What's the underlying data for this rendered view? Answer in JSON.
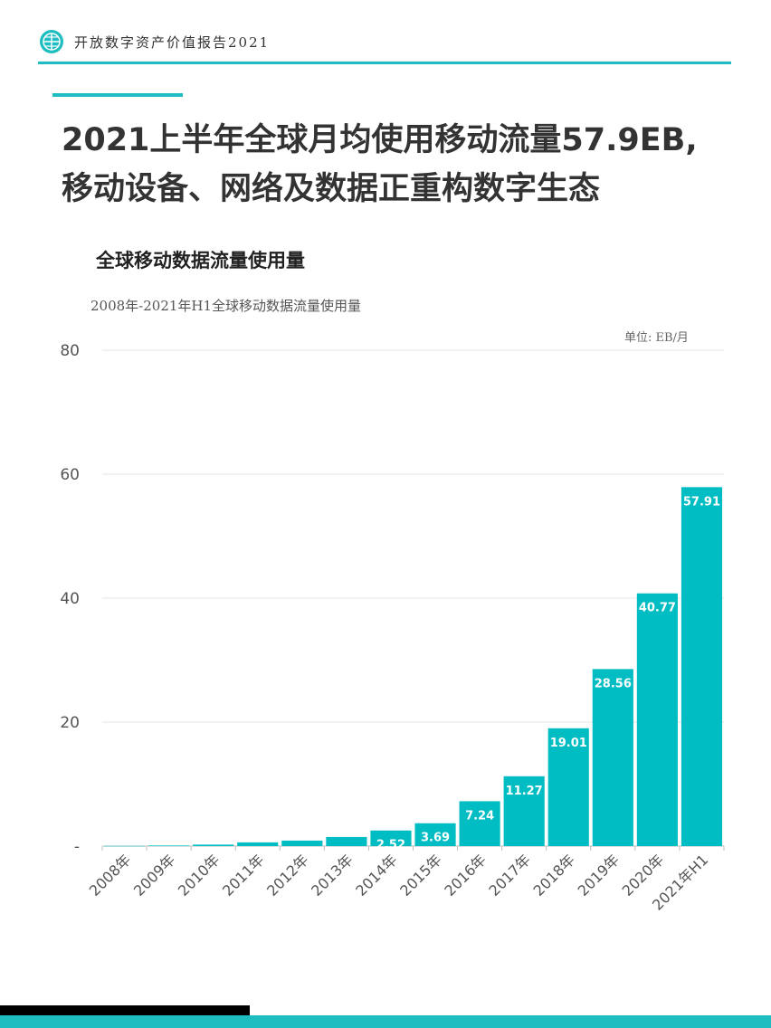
{
  "header": {
    "title": "开放数字资产价值报告2021",
    "logo_icon": "globe-icon",
    "accent_color": "#1ebdc1"
  },
  "main_title": {
    "line1": "2021上半年全球月均使用移动流量57.9EB,",
    "line2": "移动设备、网络及数据正重构数字生态"
  },
  "section_heading": "全球移动数据流量使用量",
  "chart_data": {
    "type": "bar",
    "title": "2008年-2021年H1全球移动数据流量使用量",
    "unit": "单位: EB/月",
    "xlabel": "",
    "ylabel": "",
    "ylim": [
      0,
      80
    ],
    "yticks": [
      "-",
      "20",
      "40",
      "60",
      "80"
    ],
    "grid": true,
    "bar_color": "#00bdc4",
    "categories": [
      "2008年",
      "2009年",
      "2010年",
      "2011年",
      "2012年",
      "2013年",
      "2014年",
      "2015年",
      "2016年",
      "2017年",
      "2018年",
      "2019年",
      "2020年",
      "2021年H1"
    ],
    "values": [
      0.03,
      0.1,
      0.24,
      0.6,
      0.89,
      1.47,
      2.52,
      3.69,
      7.24,
      11.27,
      19.01,
      28.56,
      40.77,
      57.91
    ],
    "data_labels": [
      "",
      "",
      "",
      "",
      "",
      "",
      "2.52",
      "3.69",
      "7.24",
      "11.27",
      "19.01",
      "28.56",
      "40.77",
      "57.91"
    ]
  }
}
